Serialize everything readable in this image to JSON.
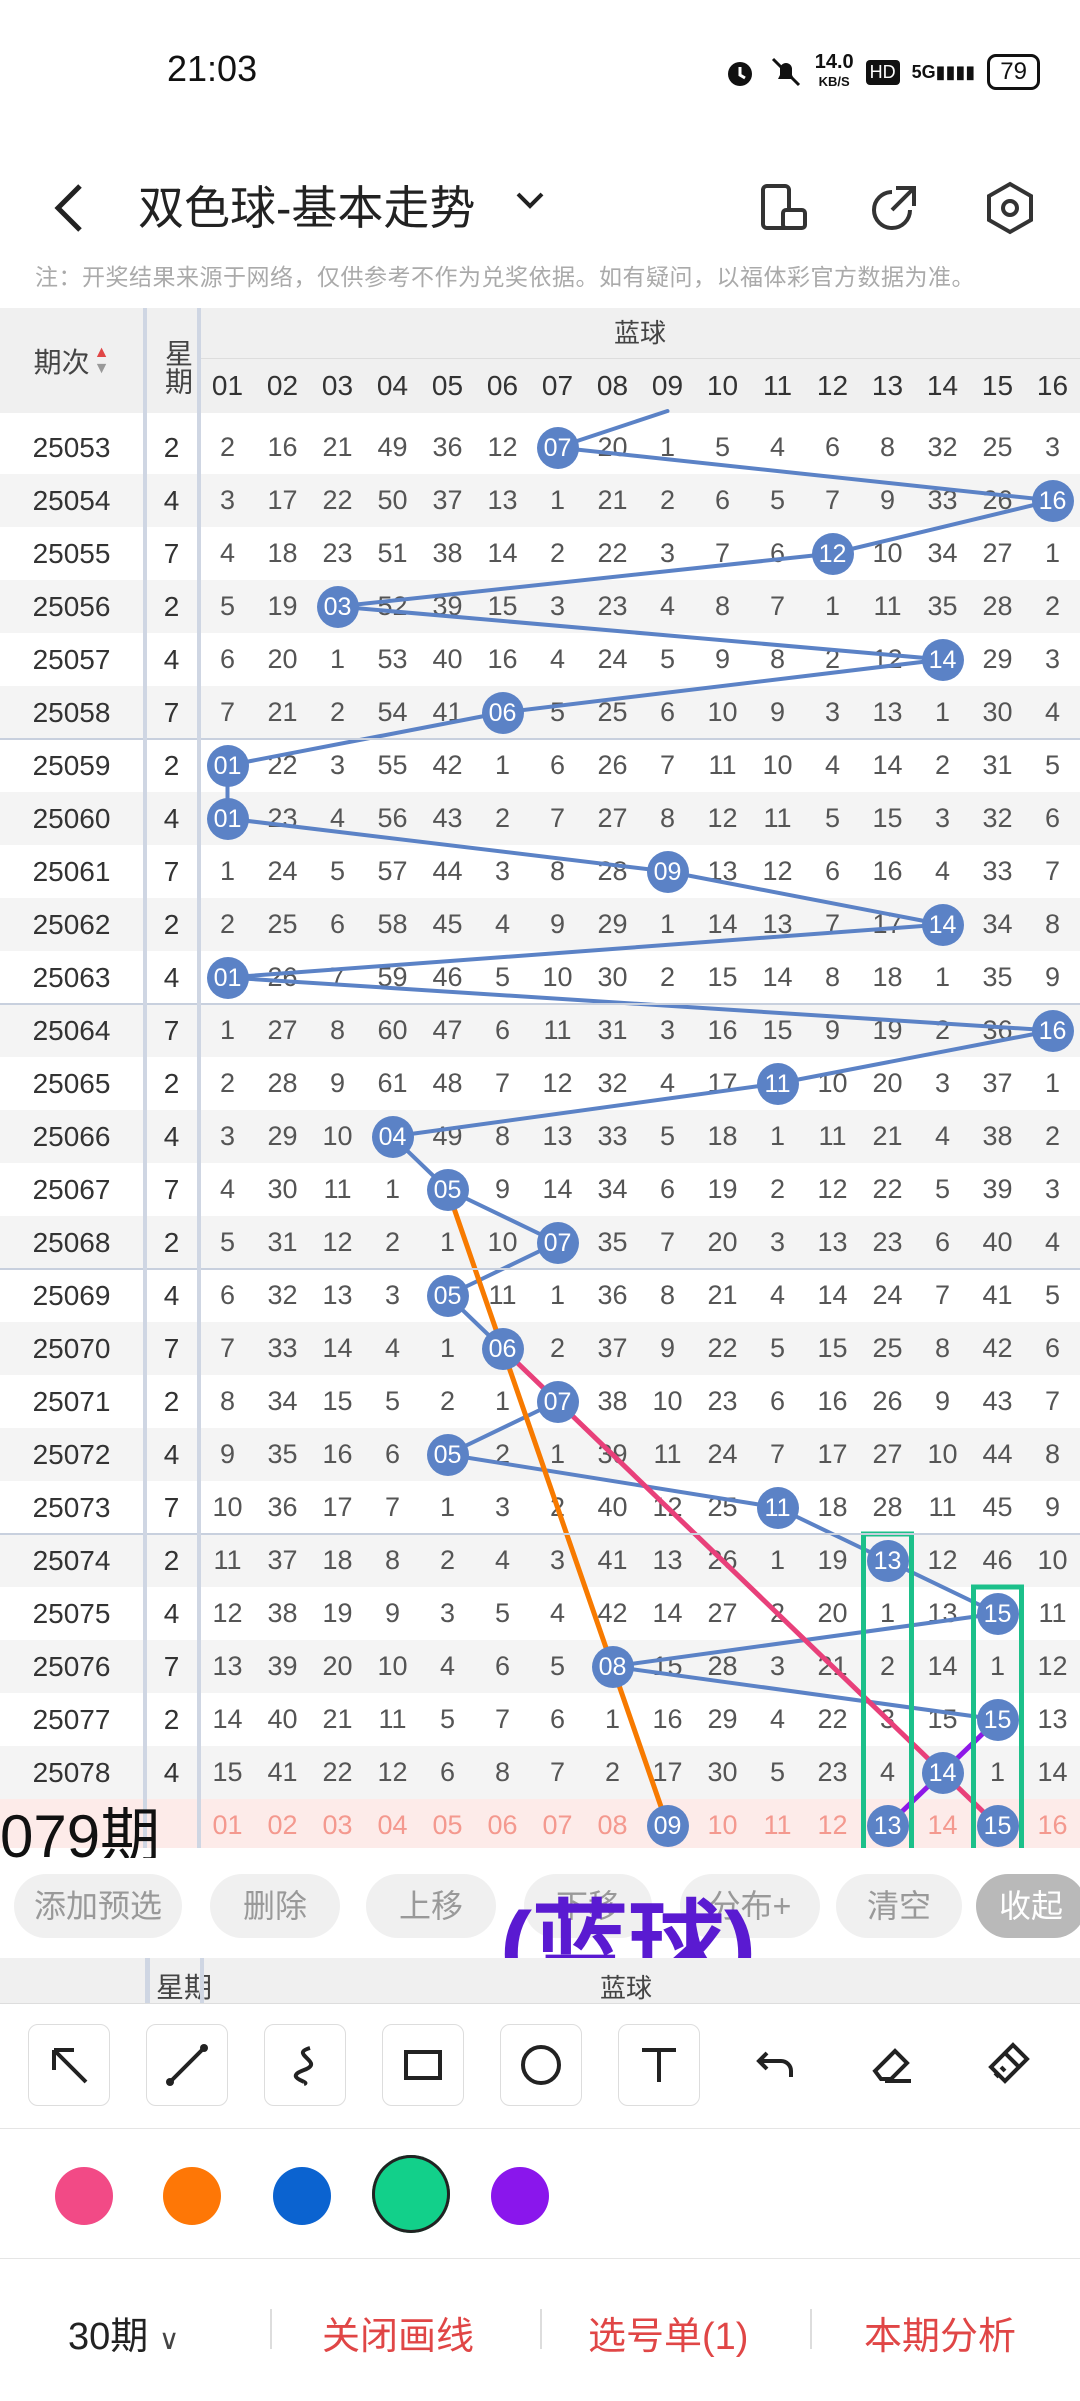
{
  "status": {
    "time": "21:03",
    "net_speed": "14.0",
    "net_unit": "KB/S",
    "hd": "HD",
    "signal": "5G",
    "battery": "79"
  },
  "header": {
    "title": "双色球-基本走势"
  },
  "notice": "注：开奖结果来源于网络，仅供参考不作为兑奖依据。如有疑问，以福体彩官方数据为准。",
  "table": {
    "col_period": "期次",
    "col_weekday": "星期",
    "col_blue": "蓝球",
    "numbers": [
      "01",
      "02",
      "03",
      "04",
      "05",
      "06",
      "07",
      "08",
      "09",
      "10",
      "11",
      "12",
      "13",
      "14",
      "15",
      "16"
    ],
    "rows": [
      {
        "period": "25053",
        "wd": "2",
        "cells": [
          "2",
          "16",
          "21",
          "49",
          "36",
          "12",
          "07",
          "20",
          "1",
          "5",
          "4",
          "6",
          "8",
          "32",
          "25",
          "3"
        ],
        "hit": 7
      },
      {
        "period": "25054",
        "wd": "4",
        "cells": [
          "3",
          "17",
          "22",
          "50",
          "37",
          "13",
          "1",
          "21",
          "2",
          "6",
          "5",
          "7",
          "9",
          "33",
          "26",
          "16"
        ],
        "hit": 16
      },
      {
        "period": "25055",
        "wd": "7",
        "cells": [
          "4",
          "18",
          "23",
          "51",
          "38",
          "14",
          "2",
          "22",
          "3",
          "7",
          "6",
          "12",
          "10",
          "34",
          "27",
          "1"
        ],
        "hit": 12
      },
      {
        "period": "25056",
        "wd": "2",
        "cells": [
          "5",
          "19",
          "03",
          "52",
          "39",
          "15",
          "3",
          "23",
          "4",
          "8",
          "7",
          "1",
          "11",
          "35",
          "28",
          "2"
        ],
        "hit": 3
      },
      {
        "period": "25057",
        "wd": "4",
        "cells": [
          "6",
          "20",
          "1",
          "53",
          "40",
          "16",
          "4",
          "24",
          "5",
          "9",
          "8",
          "2",
          "12",
          "14",
          "29",
          "3"
        ],
        "hit": 14
      },
      {
        "period": "25058",
        "wd": "7",
        "cells": [
          "7",
          "21",
          "2",
          "54",
          "41",
          "06",
          "5",
          "25",
          "6",
          "10",
          "9",
          "3",
          "13",
          "1",
          "30",
          "4"
        ],
        "hit": 6
      },
      {
        "period": "25059",
        "wd": "2",
        "cells": [
          "01",
          "22",
          "3",
          "55",
          "42",
          "1",
          "6",
          "26",
          "7",
          "11",
          "10",
          "4",
          "14",
          "2",
          "31",
          "5"
        ],
        "hit": 1
      },
      {
        "period": "25060",
        "wd": "4",
        "cells": [
          "01",
          "23",
          "4",
          "56",
          "43",
          "2",
          "7",
          "27",
          "8",
          "12",
          "11",
          "5",
          "15",
          "3",
          "32",
          "6"
        ],
        "hit": 1
      },
      {
        "period": "25061",
        "wd": "7",
        "cells": [
          "1",
          "24",
          "5",
          "57",
          "44",
          "3",
          "8",
          "28",
          "09",
          "13",
          "12",
          "6",
          "16",
          "4",
          "33",
          "7"
        ],
        "hit": 9
      },
      {
        "period": "25062",
        "wd": "2",
        "cells": [
          "2",
          "25",
          "6",
          "58",
          "45",
          "4",
          "9",
          "29",
          "1",
          "14",
          "13",
          "7",
          "17",
          "14",
          "34",
          "8"
        ],
        "hit": 14
      },
      {
        "period": "25063",
        "wd": "4",
        "cells": [
          "01",
          "26",
          "7",
          "59",
          "46",
          "5",
          "10",
          "30",
          "2",
          "15",
          "14",
          "8",
          "18",
          "1",
          "35",
          "9"
        ],
        "hit": 1
      },
      {
        "period": "25064",
        "wd": "7",
        "cells": [
          "1",
          "27",
          "8",
          "60",
          "47",
          "6",
          "11",
          "31",
          "3",
          "16",
          "15",
          "9",
          "19",
          "2",
          "36",
          "16"
        ],
        "hit": 16
      },
      {
        "period": "25065",
        "wd": "2",
        "cells": [
          "2",
          "28",
          "9",
          "61",
          "48",
          "7",
          "12",
          "32",
          "4",
          "17",
          "11",
          "10",
          "20",
          "3",
          "37",
          "1"
        ],
        "hit": 11
      },
      {
        "period": "25066",
        "wd": "4",
        "cells": [
          "3",
          "29",
          "10",
          "04",
          "49",
          "8",
          "13",
          "33",
          "5",
          "18",
          "1",
          "11",
          "21",
          "4",
          "38",
          "2"
        ],
        "hit": 4
      },
      {
        "period": "25067",
        "wd": "7",
        "cells": [
          "4",
          "30",
          "11",
          "1",
          "05",
          "9",
          "14",
          "34",
          "6",
          "19",
          "2",
          "12",
          "22",
          "5",
          "39",
          "3"
        ],
        "hit": 5
      },
      {
        "period": "25068",
        "wd": "2",
        "cells": [
          "5",
          "31",
          "12",
          "2",
          "1",
          "10",
          "07",
          "35",
          "7",
          "20",
          "3",
          "13",
          "23",
          "6",
          "40",
          "4"
        ],
        "hit": 7
      },
      {
        "period": "25069",
        "wd": "4",
        "cells": [
          "6",
          "32",
          "13",
          "3",
          "05",
          "11",
          "1",
          "36",
          "8",
          "21",
          "4",
          "14",
          "24",
          "7",
          "41",
          "5"
        ],
        "hit": 5
      },
      {
        "period": "25070",
        "wd": "7",
        "cells": [
          "7",
          "33",
          "14",
          "4",
          "1",
          "06",
          "2",
          "37",
          "9",
          "22",
          "5",
          "15",
          "25",
          "8",
          "42",
          "6"
        ],
        "hit": 6
      },
      {
        "period": "25071",
        "wd": "2",
        "cells": [
          "8",
          "34",
          "15",
          "5",
          "2",
          "1",
          "07",
          "38",
          "10",
          "23",
          "6",
          "16",
          "26",
          "9",
          "43",
          "7"
        ],
        "hit": 7
      },
      {
        "period": "25072",
        "wd": "4",
        "cells": [
          "9",
          "35",
          "16",
          "6",
          "05",
          "2",
          "1",
          "39",
          "11",
          "24",
          "7",
          "17",
          "27",
          "10",
          "44",
          "8"
        ],
        "hit": 5
      },
      {
        "period": "25073",
        "wd": "7",
        "cells": [
          "10",
          "36",
          "17",
          "7",
          "1",
          "3",
          "2",
          "40",
          "12",
          "25",
          "11",
          "18",
          "28",
          "11",
          "45",
          "9"
        ],
        "hit": 11
      },
      {
        "period": "25074",
        "wd": "2",
        "cells": [
          "11",
          "37",
          "18",
          "8",
          "2",
          "4",
          "3",
          "41",
          "13",
          "26",
          "1",
          "19",
          "13",
          "12",
          "46",
          "10"
        ],
        "hit": 13
      },
      {
        "period": "25075",
        "wd": "4",
        "cells": [
          "12",
          "38",
          "19",
          "9",
          "3",
          "5",
          "4",
          "42",
          "14",
          "27",
          "2",
          "20",
          "1",
          "13",
          "15",
          "11"
        ],
        "hit": 15
      },
      {
        "period": "25076",
        "wd": "7",
        "cells": [
          "13",
          "39",
          "20",
          "10",
          "4",
          "6",
          "5",
          "08",
          "15",
          "28",
          "3",
          "21",
          "2",
          "14",
          "1",
          "12"
        ],
        "hit": 8
      },
      {
        "period": "25077",
        "wd": "2",
        "cells": [
          "14",
          "40",
          "21",
          "11",
          "5",
          "7",
          "6",
          "1",
          "16",
          "29",
          "4",
          "22",
          "3",
          "15",
          "15",
          "13"
        ],
        "hit": 15
      },
      {
        "period": "25078",
        "wd": "4",
        "cells": [
          "15",
          "41",
          "22",
          "12",
          "6",
          "8",
          "7",
          "2",
          "17",
          "30",
          "5",
          "23",
          "4",
          "14",
          "1",
          "14"
        ],
        "hit": 14
      }
    ],
    "current_label": "079期",
    "current_picks": {
      "09": true,
      "13": true,
      "15": true
    }
  },
  "actions": {
    "add_preselect": "添加预选",
    "delete": "删除",
    "move_up": "上移",
    "move_down": "下移",
    "analyze": "分布+",
    "clear": "清空",
    "collapse": "收起"
  },
  "annotation_text": "(蓝球)",
  "tools": [
    "arrow-icon",
    "line-icon",
    "curve-icon",
    "rectangle-icon",
    "circle-icon",
    "text-icon",
    "undo-icon",
    "eraser-icon",
    "clear-brush-icon"
  ],
  "palette": [
    "#f24a86",
    "#fe7706",
    "#0b63d0",
    "#12d08a",
    "#8a16ec"
  ],
  "bottom": {
    "periods": "30期",
    "close_draw": "关闭画线",
    "pick_list": "选号单(1)",
    "analysis": "本期分析"
  },
  "colors": {
    "ball": "#5b82c6",
    "accent_red": "#e04646",
    "line_orange": "#f77a00",
    "line_pink": "#e8407a",
    "line_purple": "#8d18e8",
    "box_green": "#1cc08a"
  }
}
